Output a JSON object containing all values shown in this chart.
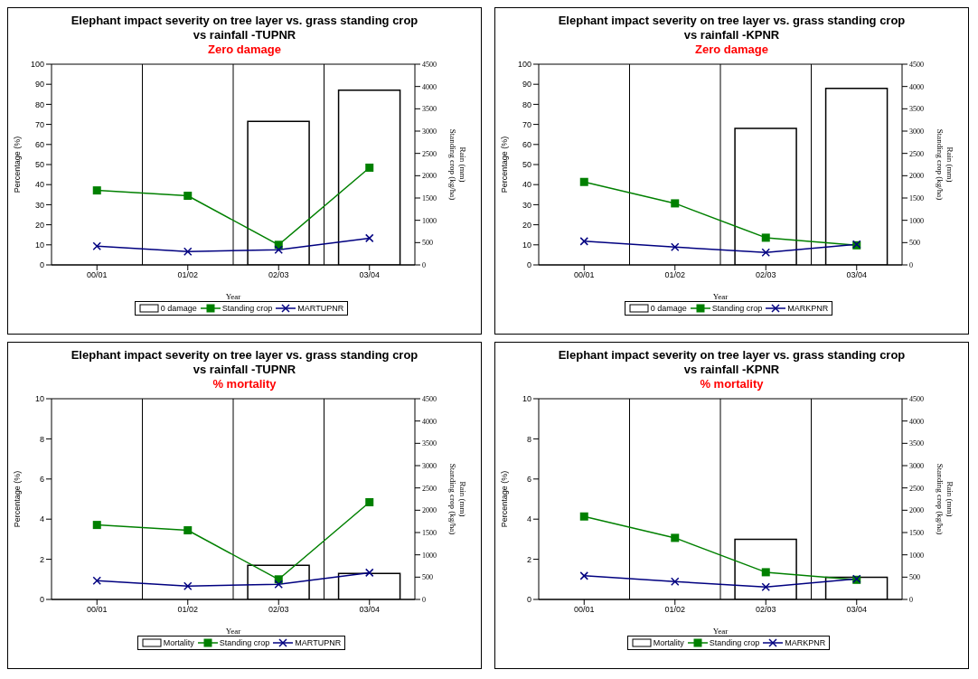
{
  "chart_data": [
    {
      "type": "bar",
      "title": "Elephant impact severity on tree layer vs. grass standing crop vs rainfall -TUPNR",
      "subtitle": "Zero damage",
      "xlabel": "Year",
      "ylabel": "Percentage (%)",
      "y2label": "Rain (mm)\nStanding crop (kg/ha)",
      "categories": [
        "00/01",
        "01/02",
        "02/03",
        "03/04"
      ],
      "ylim": [
        0,
        100
      ],
      "yticks": [
        0,
        10,
        20,
        30,
        40,
        50,
        60,
        70,
        80,
        90,
        100
      ],
      "y2lim": [
        0,
        4500
      ],
      "y2ticks": [
        0,
        500,
        1000,
        1500,
        2000,
        2500,
        3000,
        3500,
        4000,
        4500
      ],
      "grid": true,
      "legend": "bottom",
      "series": [
        {
          "name": "0 damage",
          "color": "#ffffff",
          "values": [
            0,
            0,
            71.5,
            87
          ]
        },
        {
          "type": "line",
          "name": "Standing crop",
          "color": "#008000",
          "axis": "y2",
          "marker": "square",
          "values": [
            1670,
            1550,
            450,
            2180
          ]
        },
        {
          "type": "line",
          "name": "MARTUPNR",
          "color": "#000080",
          "axis": "y2",
          "marker": "cross",
          "values": [
            420,
            300,
            340,
            600
          ]
        }
      ]
    },
    {
      "type": "bar",
      "title": "Elephant impact severity on tree layer vs. grass standing crop vs rainfall -KPNR",
      "subtitle": "Zero damage",
      "xlabel": "Year",
      "ylabel": "Percentage (%)",
      "y2label": "Rain (mm)\nStanding crop (kg/ha)",
      "categories": [
        "00/01",
        "01/02",
        "02/03",
        "03/04"
      ],
      "ylim": [
        0,
        100
      ],
      "yticks": [
        0,
        10,
        20,
        30,
        40,
        50,
        60,
        70,
        80,
        90,
        100
      ],
      "y2lim": [
        0,
        4500
      ],
      "y2ticks": [
        0,
        500,
        1000,
        1500,
        2000,
        2500,
        3000,
        3500,
        4000,
        4500
      ],
      "grid": true,
      "legend": "bottom",
      "series": [
        {
          "name": "0 damage",
          "color": "#ffffff",
          "values": [
            0,
            0,
            68,
            88
          ]
        },
        {
          "type": "line",
          "name": "Standing crop",
          "color": "#008000",
          "axis": "y2",
          "marker": "square",
          "values": [
            1860,
            1380,
            610,
            440
          ]
        },
        {
          "type": "line",
          "name": "MARKPNR",
          "color": "#000080",
          "axis": "y2",
          "marker": "cross",
          "values": [
            530,
            400,
            280,
            460
          ]
        }
      ]
    },
    {
      "type": "bar",
      "title": "Elephant impact severity on tree layer vs. grass standing crop vs rainfall -TUPNR",
      "subtitle": "% mortality",
      "xlabel": "Year",
      "ylabel": "Percentage (%)",
      "y2label": "Rain (mm)\nStanding crop (kg/ha)",
      "categories": [
        "00/01",
        "01/02",
        "02/03",
        "03/04"
      ],
      "ylim": [
        0,
        10
      ],
      "yticks": [
        0,
        2,
        4,
        6,
        8,
        10
      ],
      "y2lim": [
        0,
        4500
      ],
      "y2ticks": [
        0,
        500,
        1000,
        1500,
        2000,
        2500,
        3000,
        3500,
        4000,
        4500
      ],
      "grid": true,
      "legend": "bottom",
      "series": [
        {
          "name": "Mortality",
          "color": "#ffffff",
          "values": [
            0,
            0,
            1.7,
            1.3
          ]
        },
        {
          "type": "line",
          "name": "Standing crop",
          "color": "#008000",
          "axis": "y2",
          "marker": "square",
          "values": [
            1670,
            1550,
            450,
            2180
          ]
        },
        {
          "type": "line",
          "name": "MARTUPNR",
          "color": "#000080",
          "axis": "y2",
          "marker": "cross",
          "values": [
            420,
            300,
            340,
            600
          ]
        }
      ]
    },
    {
      "type": "bar",
      "title": "Elephant impact severity on tree layer vs. grass standing crop vs rainfall -KPNR",
      "subtitle": "% mortality",
      "xlabel": "Year",
      "ylabel": "Percentage (%)",
      "y2label": "Rain (mm)\nStanding crop (kg/ha)",
      "categories": [
        "00/01",
        "01/02",
        "02/03",
        "03/04"
      ],
      "ylim": [
        0,
        10
      ],
      "yticks": [
        0,
        2,
        4,
        6,
        8,
        10
      ],
      "y2lim": [
        0,
        4500
      ],
      "y2ticks": [
        0,
        500,
        1000,
        1500,
        2000,
        2500,
        3000,
        3500,
        4000,
        4500
      ],
      "grid": true,
      "legend": "bottom",
      "series": [
        {
          "name": "Mortality",
          "color": "#ffffff",
          "values": [
            0,
            0,
            3.0,
            1.1
          ]
        },
        {
          "type": "line",
          "name": "Standing crop",
          "color": "#008000",
          "axis": "y2",
          "marker": "square",
          "values": [
            1860,
            1380,
            610,
            440
          ]
        },
        {
          "type": "line",
          "name": "MARKPNR",
          "color": "#000080",
          "axis": "y2",
          "marker": "cross",
          "values": [
            530,
            400,
            280,
            460
          ]
        }
      ]
    }
  ]
}
